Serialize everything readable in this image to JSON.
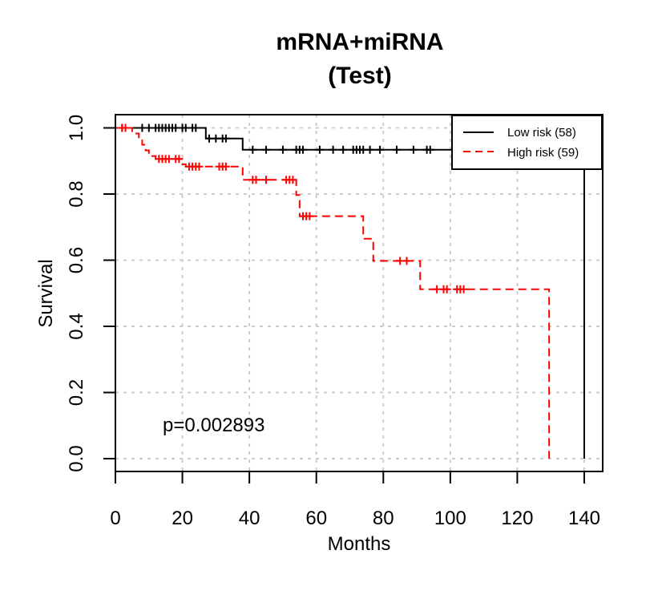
{
  "chart_data": {
    "type": "line",
    "title": [
      "mRNA+miRNA",
      "(Test)"
    ],
    "xlabel": "Months",
    "ylabel": "Survival",
    "xlim": [
      0,
      145
    ],
    "ylim": [
      0,
      1
    ],
    "xticks": [
      "0",
      "20",
      "40",
      "60",
      "80",
      "100",
      "120",
      "140"
    ],
    "yticks": [
      "0.0",
      "0.2",
      "0.4",
      "0.6",
      "0.8",
      "1.0"
    ],
    "grid": true,
    "legend_position": "top-right",
    "annotation": "p=0.002893",
    "series": [
      {
        "name": "Low risk (58)",
        "color": "#000000",
        "dash": "solid",
        "steps": [
          [
            0,
            1.0
          ],
          [
            27,
            0.968
          ],
          [
            38,
            0.934
          ],
          [
            140,
            0.0
          ]
        ],
        "censors": [
          [
            2,
            1.0
          ],
          [
            8,
            1.0
          ],
          [
            10,
            1.0
          ],
          [
            12,
            1.0
          ],
          [
            13,
            1.0
          ],
          [
            14,
            1.0
          ],
          [
            15,
            1.0
          ],
          [
            16,
            1.0
          ],
          [
            17,
            1.0
          ],
          [
            18,
            1.0
          ],
          [
            20,
            1.0
          ],
          [
            21,
            1.0
          ],
          [
            23,
            1.0
          ],
          [
            24,
            1.0
          ],
          [
            28,
            0.968
          ],
          [
            30,
            0.968
          ],
          [
            32,
            0.968
          ],
          [
            33,
            0.968
          ],
          [
            41,
            0.934
          ],
          [
            45,
            0.934
          ],
          [
            50,
            0.934
          ],
          [
            54,
            0.934
          ],
          [
            55,
            0.934
          ],
          [
            56,
            0.934
          ],
          [
            61,
            0.934
          ],
          [
            65,
            0.934
          ],
          [
            68,
            0.934
          ],
          [
            71,
            0.934
          ],
          [
            72,
            0.934
          ],
          [
            73,
            0.934
          ],
          [
            74,
            0.934
          ],
          [
            76,
            0.934
          ],
          [
            79,
            0.934
          ],
          [
            84,
            0.934
          ],
          [
            89,
            0.934
          ],
          [
            93,
            0.934
          ],
          [
            94,
            0.934
          ],
          [
            104,
            0.934
          ],
          [
            117,
            0.934
          ],
          [
            128,
            0.934
          ]
        ]
      },
      {
        "name": "High risk (59)",
        "color": "#ff0000",
        "dash": "dashed",
        "steps": [
          [
            0,
            1.0
          ],
          [
            5,
            0.983
          ],
          [
            7,
            0.966
          ],
          [
            8,
            0.949
          ],
          [
            9,
            0.932
          ],
          [
            10,
            0.915
          ],
          [
            12,
            0.906
          ],
          [
            20,
            0.89
          ],
          [
            21,
            0.883
          ],
          [
            38,
            0.843
          ],
          [
            54,
            0.797
          ],
          [
            55,
            0.733
          ],
          [
            74,
            0.665
          ],
          [
            77,
            0.598
          ],
          [
            91,
            0.512
          ],
          [
            129.5,
            0.0
          ]
        ],
        "censors": [
          [
            2,
            1.0
          ],
          [
            3,
            1.0
          ],
          [
            13,
            0.906
          ],
          [
            14,
            0.906
          ],
          [
            15,
            0.906
          ],
          [
            16,
            0.906
          ],
          [
            18,
            0.906
          ],
          [
            19,
            0.906
          ],
          [
            22,
            0.883
          ],
          [
            23,
            0.883
          ],
          [
            24,
            0.883
          ],
          [
            25,
            0.883
          ],
          [
            31,
            0.883
          ],
          [
            32,
            0.883
          ],
          [
            33,
            0.883
          ],
          [
            41,
            0.843
          ],
          [
            42,
            0.843
          ],
          [
            45,
            0.843
          ],
          [
            51,
            0.843
          ],
          [
            52,
            0.843
          ],
          [
            53,
            0.843
          ],
          [
            56,
            0.733
          ],
          [
            57,
            0.733
          ],
          [
            58,
            0.733
          ],
          [
            85,
            0.598
          ],
          [
            87,
            0.598
          ],
          [
            96,
            0.512
          ],
          [
            98,
            0.512
          ],
          [
            99,
            0.512
          ],
          [
            102,
            0.512
          ],
          [
            103,
            0.512
          ],
          [
            104,
            0.512
          ]
        ]
      }
    ]
  }
}
